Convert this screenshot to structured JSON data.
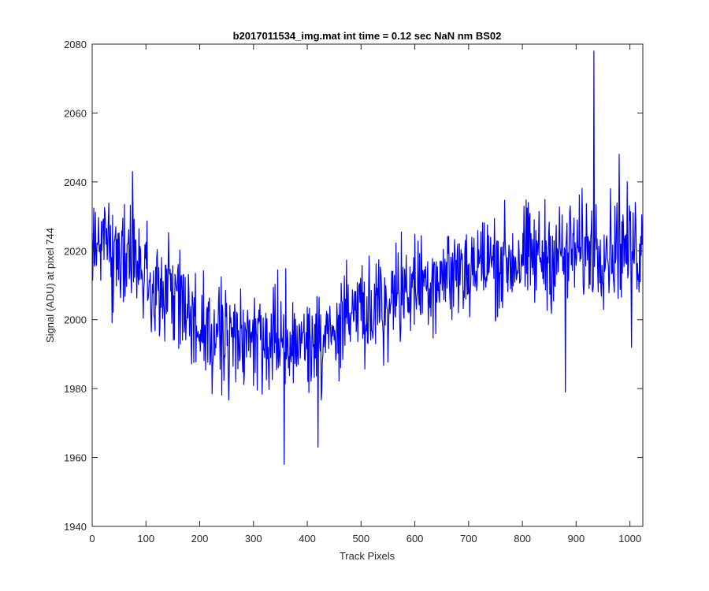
{
  "chart_data": {
    "type": "line",
    "title": "b2017011534_img.mat int time = 0.12 sec  NaN nm BS02",
    "xlabel": "Track Pixels",
    "ylabel": "Signal (ADU) at pixel 744",
    "xlim": [
      0,
      1024
    ],
    "ylim": [
      1940,
      2080
    ],
    "x_ticks": [
      0,
      100,
      200,
      300,
      400,
      500,
      600,
      700,
      800,
      900,
      1000
    ],
    "y_ticks": [
      1940,
      1960,
      1980,
      2000,
      2020,
      2040,
      2060,
      2080
    ],
    "x_tick_labels": [
      "0",
      "100",
      "200",
      "300",
      "400",
      "500",
      "600",
      "700",
      "800",
      "900",
      "1000"
    ],
    "y_tick_labels": [
      "1940",
      "1960",
      "1980",
      "2000",
      "2020",
      "2040",
      "2060",
      "2080"
    ],
    "grid": false,
    "line_color": "#0000ff",
    "series": [
      {
        "x": [
          0,
          25,
          50,
          75,
          100,
          125,
          150,
          175,
          200,
          225,
          250,
          275,
          300,
          325,
          350,
          375,
          400,
          425,
          450,
          475,
          500,
          525,
          550,
          575,
          600,
          625,
          650,
          675,
          700,
          725,
          750,
          775,
          800,
          825,
          850,
          875,
          900,
          925,
          950,
          975,
          1000,
          1024
        ],
        "values": [
          2022,
          2020,
          2018,
          2017,
          2013,
          2010,
          2006,
          2001,
          1997,
          1994,
          1993,
          1993,
          1994,
          1994,
          1995,
          1995,
          1994,
          1995,
          1997,
          1999,
          2001,
          2003,
          2006,
          2008,
          2010,
          2012,
          2013,
          2014,
          2015,
          2016,
          2017,
          2017,
          2018,
          2018,
          2019,
          2019,
          2020,
          2021,
          2021,
          2021,
          2021,
          2021
        ],
        "noise_amplitude": 10,
        "spikes": [
          {
            "x": 75,
            "y": 2043
          },
          {
            "x": 357,
            "y": 1958
          },
          {
            "x": 420,
            "y": 1963
          },
          {
            "x": 880,
            "y": 1979
          },
          {
            "x": 933,
            "y": 2078
          },
          {
            "x": 980,
            "y": 2048
          },
          {
            "x": 1003,
            "y": 1992
          }
        ]
      }
    ]
  }
}
